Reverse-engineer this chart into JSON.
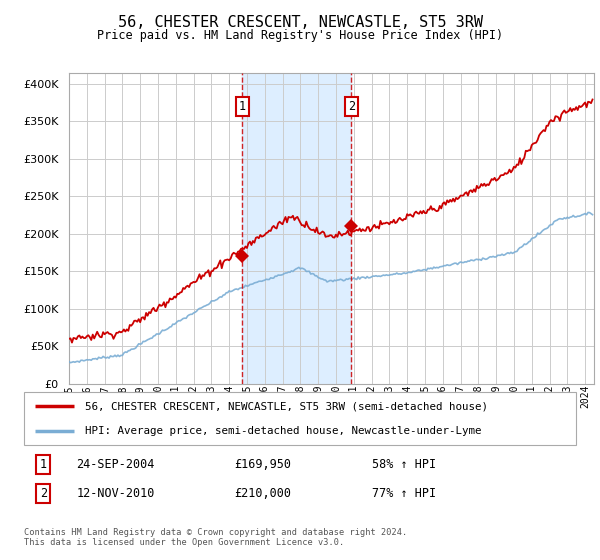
{
  "title": "56, CHESTER CRESCENT, NEWCASTLE, ST5 3RW",
  "subtitle": "Price paid vs. HM Land Registry's House Price Index (HPI)",
  "ytick_values": [
    0,
    50000,
    100000,
    150000,
    200000,
    250000,
    300000,
    350000,
    400000
  ],
  "ylim": [
    0,
    415000
  ],
  "xlim_start": 1995.3,
  "xlim_end": 2024.5,
  "hpi_color": "#7aadd4",
  "price_color": "#cc0000",
  "sale1_date": 2004.73,
  "sale1_price": 169950,
  "sale2_date": 2010.87,
  "sale2_price": 210000,
  "sale1_label": "1",
  "sale2_label": "2",
  "sale1_info": "24-SEP-2004",
  "sale1_amount": "£169,950",
  "sale1_hpi": "58% ↑ HPI",
  "sale2_info": "12-NOV-2010",
  "sale2_amount": "£210,000",
  "sale2_hpi": "77% ↑ HPI",
  "legend_line1": "56, CHESTER CRESCENT, NEWCASTLE, ST5 3RW (semi-detached house)",
  "legend_line2": "HPI: Average price, semi-detached house, Newcastle-under-Lyme",
  "footnote": "Contains HM Land Registry data © Crown copyright and database right 2024.\nThis data is licensed under the Open Government Licence v3.0.",
  "background_color": "#ffffff",
  "plot_bg_color": "#ffffff",
  "highlight_bg": "#ddeeff",
  "grid_color": "#cccccc",
  "spine_color": "#aaaaaa"
}
